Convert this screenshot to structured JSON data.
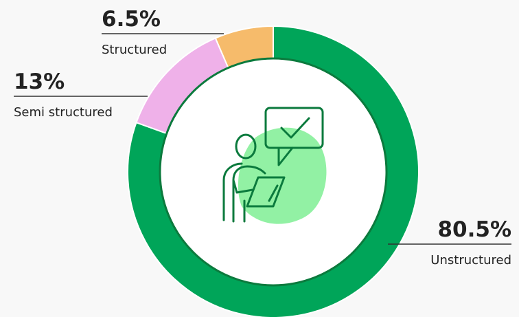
{
  "chart_data": {
    "type": "donut",
    "categories": [
      "Unstructured",
      "Semi structured",
      "Structured"
    ],
    "values": [
      80.5,
      13,
      6.5
    ],
    "value_labels": [
      "80.5%",
      "13%",
      "6.5%"
    ],
    "colors": [
      "#00a559",
      "#efb1e9",
      "#f6bb6b"
    ]
  }
}
